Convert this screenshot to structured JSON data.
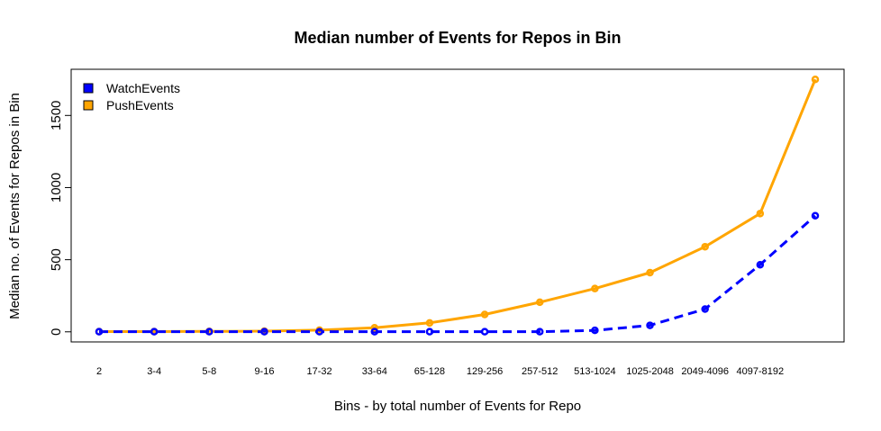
{
  "chart_data": {
    "type": "line",
    "title": "Median number of Events for Repos in Bin",
    "xlabel": "Bins - by total number of Events for Repo",
    "ylabel": "Median no. of Events for Repos in Bin",
    "categories": [
      "2",
      "3-4",
      "5-8",
      "9-16",
      "17-32",
      "33-64",
      "65-128",
      "129-256",
      "257-512",
      "513-1024",
      "1025-2048",
      "2049-4096",
      "4097-8192",
      ""
    ],
    "yticks": [
      0,
      500,
      1000,
      1500
    ],
    "ylim": [
      -70,
      1820
    ],
    "grid": false,
    "legend_position": "top-left",
    "series": [
      {
        "name": "WatchEvents",
        "color": "#0000ff",
        "line_style": "dashed",
        "values": [
          1,
          1,
          1,
          1,
          1,
          1,
          1,
          1,
          1,
          10,
          45,
          158,
          465,
          805
        ]
      },
      {
        "name": "PushEvents",
        "color": "#ffa500",
        "line_style": "solid",
        "values": [
          2,
          2,
          3,
          5,
          12,
          28,
          62,
          120,
          205,
          300,
          410,
          590,
          820,
          1750
        ]
      }
    ]
  }
}
